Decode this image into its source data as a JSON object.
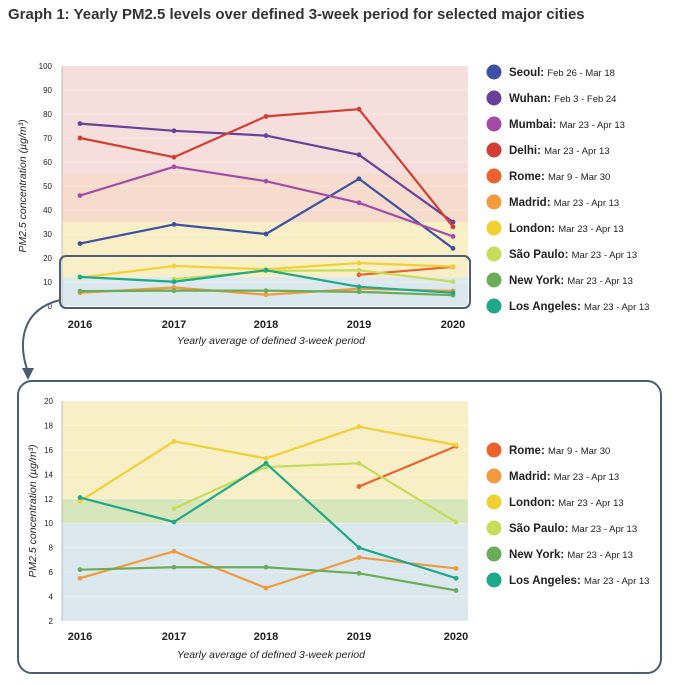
{
  "title": "Graph 1: Yearly PM2.5 levels over defined 3-week period for selected major cities",
  "chart_data": [
    {
      "type": "line",
      "name": "all-cities",
      "categories": [
        "2016",
        "2017",
        "2018",
        "2019",
        "2020"
      ],
      "xlabel": "Yearly average of defined 3-week period",
      "ylabel": "PM2.5 concentration (µg/m³)",
      "ylim": [
        0,
        100
      ],
      "yticks": [
        0,
        10,
        20,
        30,
        40,
        50,
        60,
        70,
        80,
        90,
        100
      ],
      "bands": [
        {
          "from": 0,
          "to": 12,
          "color": "#dbe8ee"
        },
        {
          "from": 12,
          "to": 35,
          "color": "#f8efc6"
        },
        {
          "from": 35,
          "to": 55,
          "color": "#f7dccd"
        },
        {
          "from": 55,
          "to": 100,
          "color": "#f6dedc"
        }
      ],
      "series": [
        {
          "name": "Seoul",
          "range": "Feb 26 - Mar 18",
          "color": "#3f51a2",
          "values": [
            26,
            34,
            30,
            53,
            24
          ]
        },
        {
          "name": "Wuhan",
          "range": "Feb 3 - Feb 24",
          "color": "#6a3f9e",
          "values": [
            76,
            73,
            71,
            63,
            35
          ]
        },
        {
          "name": "Mumbai",
          "range": "Mar 23 - Apr 13",
          "color": "#a54ba6",
          "values": [
            46,
            58,
            52,
            43,
            29
          ]
        },
        {
          "name": "Delhi",
          "range": "Mar 23 - Apr 13",
          "color": "#d23e33",
          "values": [
            70,
            62,
            79,
            82,
            33
          ]
        },
        {
          "name": "Rome",
          "range": "Mar 9 - Mar 30",
          "color": "#ec6330",
          "values": [
            null,
            null,
            null,
            13,
            16.3
          ]
        },
        {
          "name": "Madrid",
          "range": "Mar 23 - Apr 13",
          "color": "#f19a3e",
          "values": [
            5.5,
            7.7,
            4.7,
            7.2,
            6.3
          ]
        },
        {
          "name": "London",
          "range": "Mar 23 - Apr 13",
          "color": "#f1d033",
          "values": [
            11.8,
            16.7,
            15.3,
            17.9,
            16.4
          ]
        },
        {
          "name": "São Paulo",
          "range": "Mar 23 - Apr 13",
          "color": "#c5dd5b",
          "values": [
            null,
            11.2,
            14.6,
            14.9,
            10.1
          ]
        },
        {
          "name": "New York",
          "range": "Mar 23 - Apr 13",
          "color": "#6aac5a",
          "values": [
            6.2,
            6.4,
            6.4,
            5.9,
            4.5
          ]
        },
        {
          "name": "Los Angeles",
          "range": "Mar 23 - Apr 13",
          "color": "#1ea98a",
          "values": [
            12.1,
            10.1,
            14.9,
            8,
            5.5
          ]
        }
      ]
    },
    {
      "type": "line",
      "name": "low-range-detail",
      "categories": [
        "2016",
        "2017",
        "2018",
        "2019",
        "2020"
      ],
      "xlabel": "Yearly average of defined 3-week period",
      "ylabel": "PM2.5 concentration (µg/m³)",
      "ylim": [
        2,
        20
      ],
      "yticks": [
        2,
        4,
        6,
        8,
        10,
        12,
        14,
        16,
        18,
        20
      ],
      "bands": [
        {
          "from": 2,
          "to": 10,
          "color": "#dbe8ee"
        },
        {
          "from": 10,
          "to": 12,
          "color": "#d8e6bb"
        },
        {
          "from": 12,
          "to": 20,
          "color": "#f8efc6"
        }
      ],
      "series": [
        {
          "name": "Rome",
          "range": "Mar 9 - Mar 30",
          "color": "#ec6330",
          "values": [
            null,
            null,
            null,
            13,
            16.3
          ]
        },
        {
          "name": "Madrid",
          "range": "Mar 23 - Apr 13",
          "color": "#f19a3e",
          "values": [
            5.5,
            7.7,
            4.7,
            7.2,
            6.3
          ]
        },
        {
          "name": "London",
          "range": "Mar 23 - Apr 13",
          "color": "#f1d033",
          "values": [
            11.8,
            16.7,
            15.3,
            17.9,
            16.4
          ]
        },
        {
          "name": "São Paulo",
          "range": "Mar 23 - Apr 13",
          "color": "#c5dd5b",
          "values": [
            null,
            11.2,
            14.6,
            14.9,
            10.1
          ]
        },
        {
          "name": "New York",
          "range": "Mar 23 - Apr 13",
          "color": "#6aac5a",
          "values": [
            6.2,
            6.4,
            6.4,
            5.9,
            4.5
          ]
        },
        {
          "name": "Los Angeles",
          "range": "Mar 23 - Apr 13",
          "color": "#1ea98a",
          "values": [
            12.1,
            10.1,
            14.9,
            8,
            5.5
          ]
        }
      ]
    }
  ]
}
